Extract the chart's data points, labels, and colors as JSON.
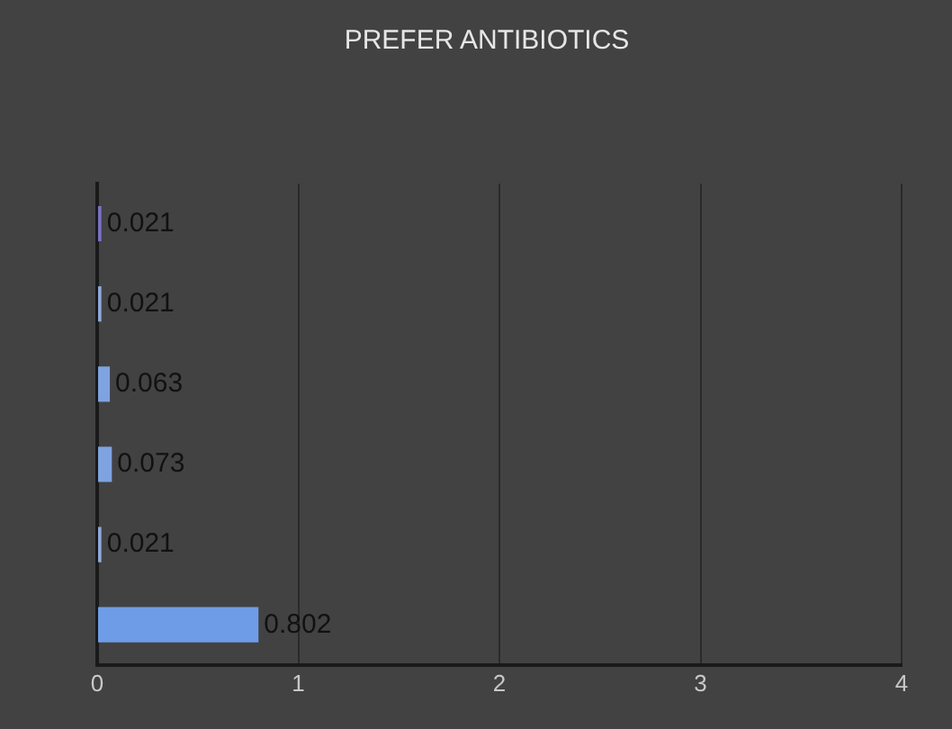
{
  "chart_data": {
    "type": "bar",
    "orientation": "horizontal",
    "title": "PREFER ANTIBIOTICS",
    "categories": [
      null,
      null,
      null,
      null,
      null,
      null
    ],
    "values": [
      0.021,
      0.021,
      0.063,
      0.073,
      0.021,
      0.802
    ],
    "colors": [
      "#7a70c8",
      "#8fa8d8",
      "#7fa3e0",
      "#7fa3e0",
      "#8fa8d8",
      "#6f9ce6"
    ],
    "xlim": [
      0,
      4
    ],
    "xticks": [
      0,
      1,
      2,
      3,
      4
    ],
    "grid": "x",
    "data_labels": true,
    "legend": false
  }
}
